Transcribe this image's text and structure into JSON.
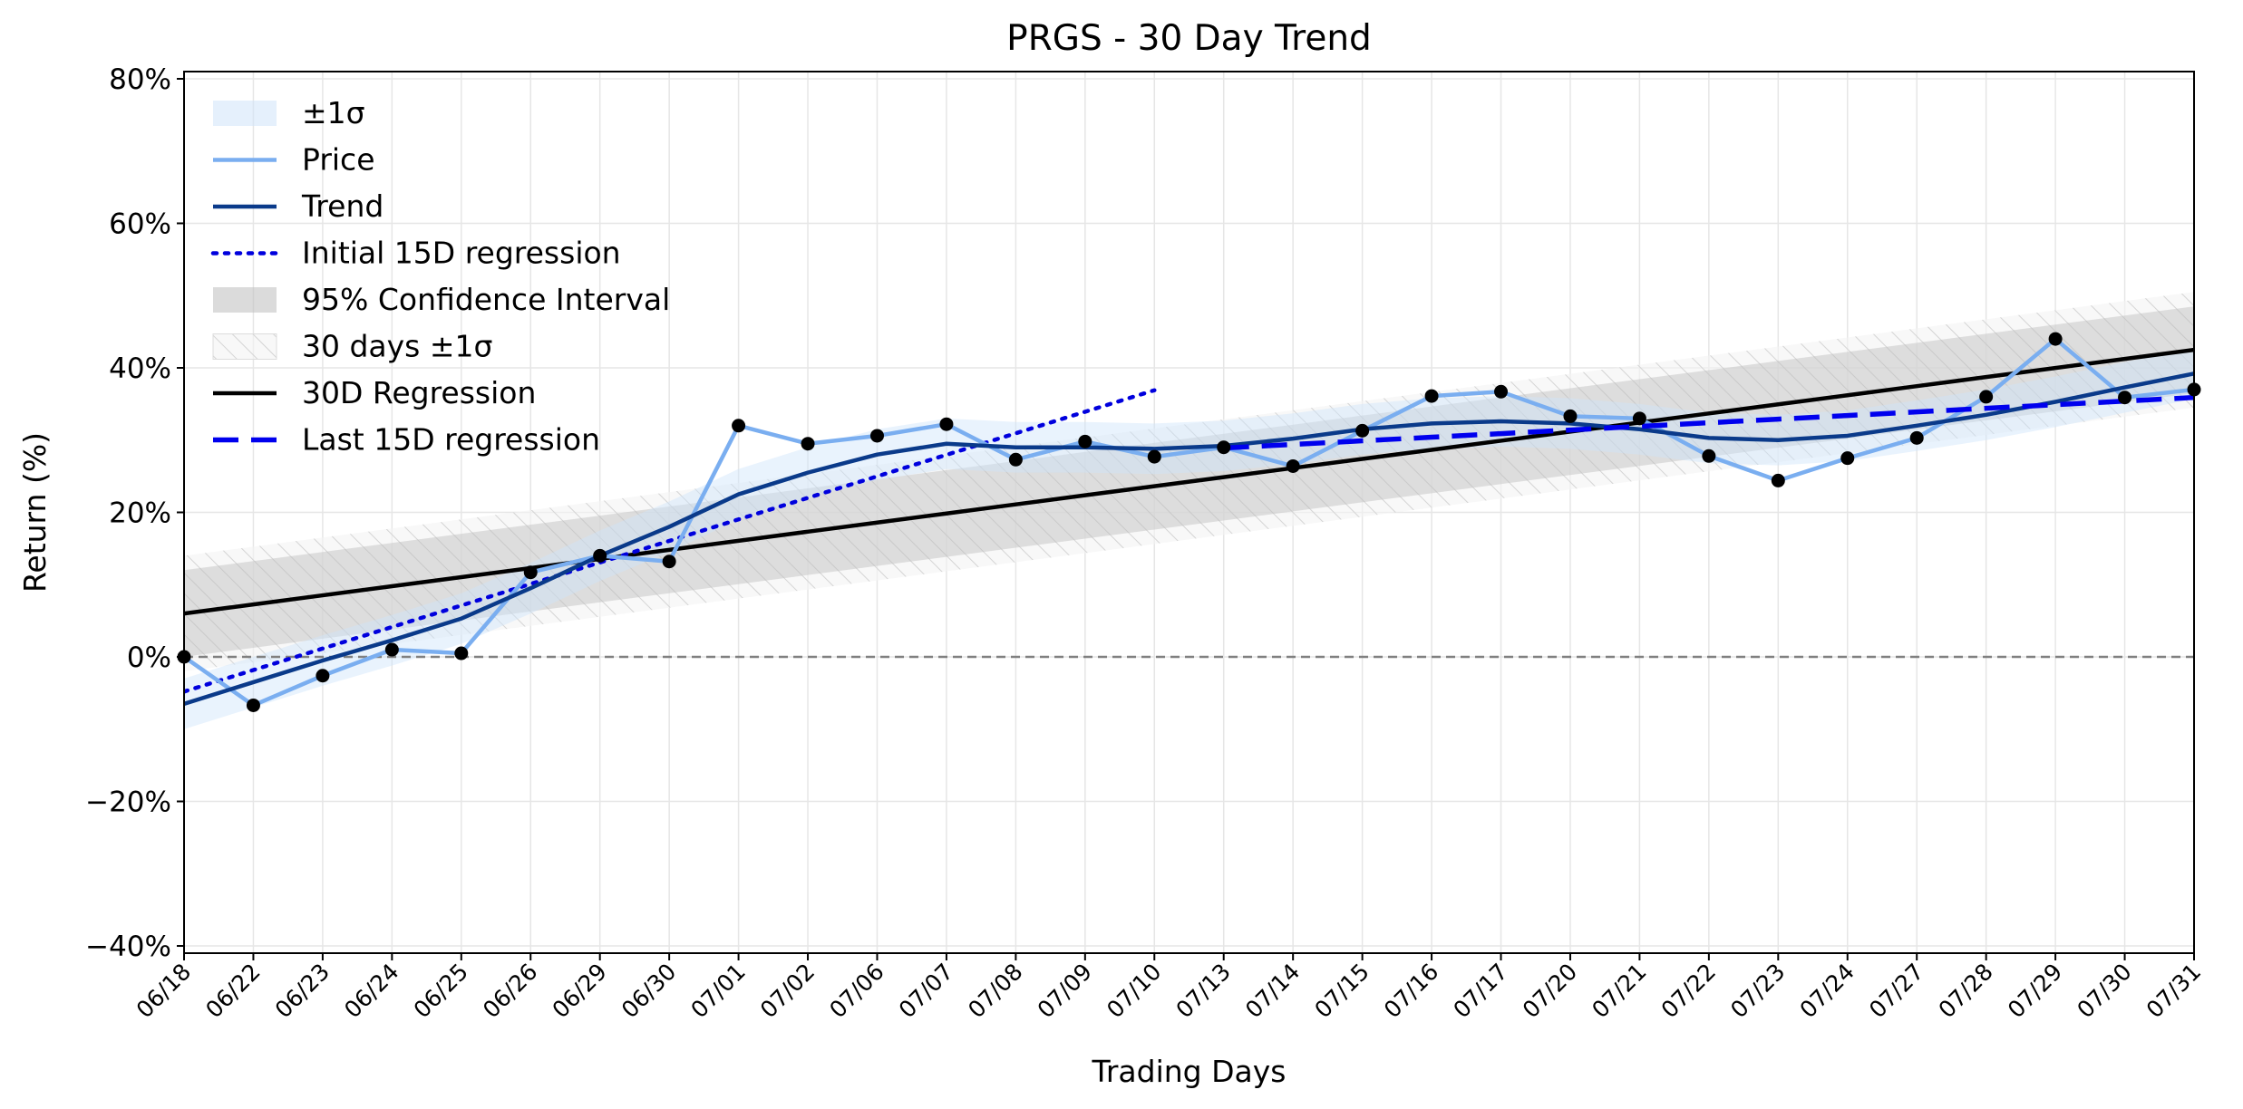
{
  "chart_data": {
    "type": "line",
    "title": "PRGS - 30 Day Trend",
    "xlabel": "Trading Days",
    "ylabel": "Return (%)",
    "categories": [
      "06/18",
      "06/22",
      "06/23",
      "06/24",
      "06/25",
      "06/26",
      "06/29",
      "06/30",
      "07/01",
      "07/02",
      "07/06",
      "07/07",
      "07/08",
      "07/09",
      "07/10",
      "07/13",
      "07/14",
      "07/15",
      "07/16",
      "07/17",
      "07/20",
      "07/21",
      "07/22",
      "07/23",
      "07/24",
      "07/27",
      "07/28",
      "07/29",
      "07/30",
      "07/31"
    ],
    "ylim": [
      -41,
      81
    ],
    "yticks": [
      -40,
      -20,
      0,
      20,
      40,
      60,
      80
    ],
    "ytick_labels": [
      "−40%",
      "−20%",
      "0%",
      "20%",
      "40%",
      "60%",
      "80%"
    ],
    "grid": true,
    "legend_position": "top-left",
    "zero_line": 0,
    "series": [
      {
        "name": "Price",
        "color": "#7aaef0",
        "values": [
          0.0,
          -6.7,
          -2.6,
          1.0,
          0.5,
          11.7,
          14.0,
          13.2,
          32.0,
          29.5,
          30.6,
          32.2,
          27.3,
          29.8,
          27.7,
          29.0,
          26.4,
          31.3,
          36.1,
          36.7,
          33.3,
          33.0,
          27.8,
          24.4,
          27.5,
          30.3,
          36.0,
          44.0,
          35.9,
          37.0
        ]
      },
      {
        "name": "Trend",
        "color": "#0a3a8a",
        "values": [
          -6.5,
          -3.5,
          -0.5,
          2.3,
          5.3,
          9.5,
          14.0,
          18.0,
          22.5,
          25.5,
          28.0,
          29.5,
          29.0,
          29.0,
          28.8,
          29.2,
          30.2,
          31.5,
          32.3,
          32.6,
          32.3,
          31.5,
          30.3,
          30.0,
          30.6,
          32.0,
          33.5,
          35.3,
          37.3,
          39.2
        ]
      },
      {
        "name": "Initial 15D regression",
        "color": "#0000dd",
        "style": "dotted",
        "x_range": [
          "06/18",
          "07/10"
        ],
        "y_range": [
          -4.8,
          36.9
        ]
      },
      {
        "name": "30D Regression",
        "color": "#000000",
        "style": "solid",
        "x_range": [
          "06/18",
          "07/31"
        ],
        "y_range": [
          6.0,
          42.5
        ]
      },
      {
        "name": "Last 15D regression",
        "color": "#0000ee",
        "style": "dashed",
        "x_range": [
          "07/13",
          "07/31"
        ],
        "y_range": [
          28.9,
          35.9
        ]
      }
    ],
    "bands": [
      {
        "name": "±1σ",
        "color": "#cfe4fa",
        "around": "Trend",
        "half_width": 3.5
      },
      {
        "name": "95% Confidence Interval",
        "color": "#bdbdbd",
        "around": "30D Regression",
        "half_width": 6.0
      },
      {
        "name": "30 days ±1σ",
        "color": "#f2f2f2",
        "around": "30D Regression",
        "half_width": 8.0,
        "hatched": true
      }
    ],
    "legend": [
      {
        "label": "±1σ",
        "kind": "patch",
        "color": "#cfe4fa"
      },
      {
        "label": "Price",
        "kind": "line",
        "color": "#7aaef0",
        "style": "solid"
      },
      {
        "label": "Trend",
        "kind": "line",
        "color": "#0a3a8a",
        "style": "solid"
      },
      {
        "label": "Initial 15D regression",
        "kind": "line",
        "color": "#0000dd",
        "style": "dotted"
      },
      {
        "label": "95% Confidence Interval",
        "kind": "patch",
        "color": "#bdbdbd"
      },
      {
        "label": "30 days ±1σ",
        "kind": "patch",
        "color": "#f2f2f2",
        "hatched": true
      },
      {
        "label": "30D Regression",
        "kind": "line",
        "color": "#000000",
        "style": "solid"
      },
      {
        "label": "Last 15D regression",
        "kind": "line",
        "color": "#0000ee",
        "style": "dashed"
      }
    ]
  }
}
